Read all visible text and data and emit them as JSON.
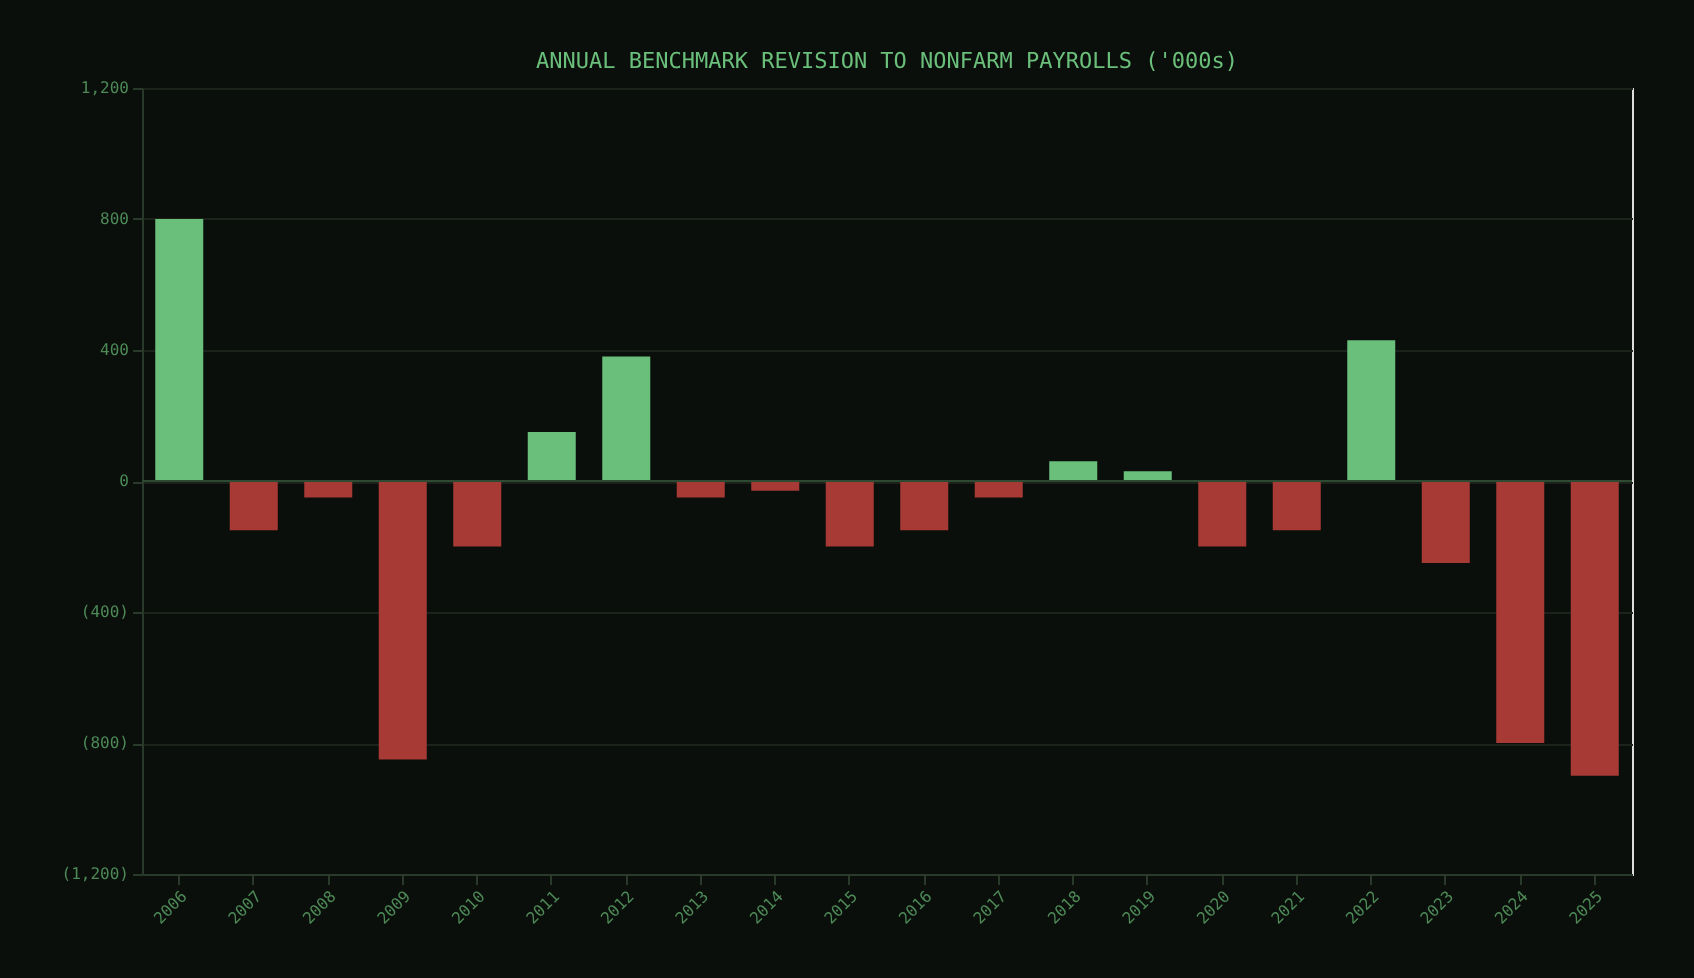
{
  "chart_data": {
    "type": "bar",
    "title": "ANNUAL BENCHMARK REVISION TO NONFARM PAYROLLS ('000s)",
    "categories": [
      "2006",
      "2007",
      "2008",
      "2009",
      "2010",
      "2011",
      "2012",
      "2013",
      "2014",
      "2015",
      "2016",
      "2017",
      "2018",
      "2019",
      "2020",
      "2021",
      "2022",
      "2023",
      "2024",
      "2025"
    ],
    "values": [
      800,
      -150,
      -50,
      -850,
      -200,
      150,
      380,
      -50,
      -30,
      -200,
      -150,
      -50,
      60,
      30,
      -200,
      -150,
      430,
      -250,
      -800,
      -900
    ],
    "colors": [
      "#6abf7b",
      "#a83a36",
      "#a83a36",
      "#a83a36",
      "#a83a36",
      "#6abf7b",
      "#6abf7b",
      "#a83a36",
      "#a83a36",
      "#a83a36",
      "#a83a36",
      "#a83a36",
      "#6abf7b",
      "#6abf7b",
      "#a83a36",
      "#a83a36",
      "#6abf7b",
      "#a83a36",
      "#a83a36",
      "#a83a36"
    ],
    "ylim": [
      -1200,
      1200
    ],
    "yticks": [
      {
        "value": 1200,
        "label": "1,200"
      },
      800,
      400,
      0,
      {
        "value": -400,
        "label": "(400)"
      },
      {
        "value": -800,
        "label": "(800)"
      },
      {
        "value": -1200,
        "label": "(1,200)"
      }
    ],
    "grid": "y"
  }
}
